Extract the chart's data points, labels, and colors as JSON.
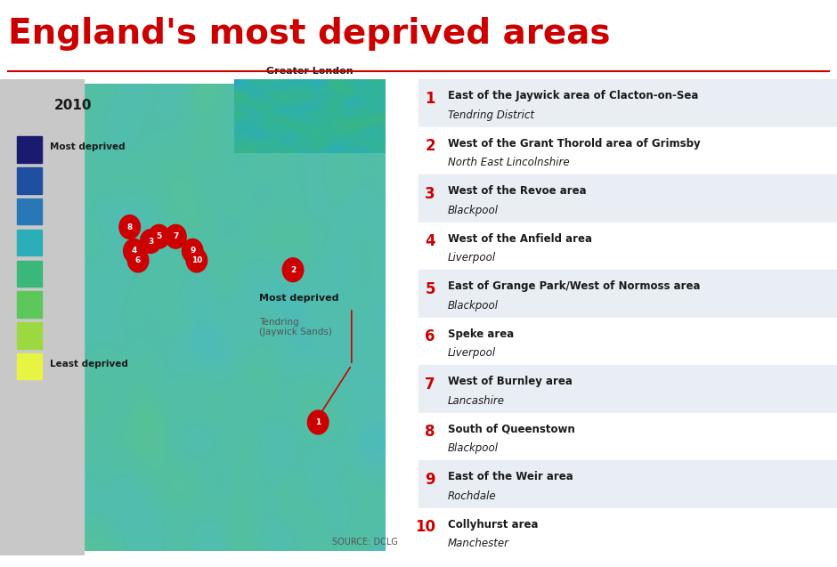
{
  "title": "England's most deprived areas",
  "title_color": "#cc0000",
  "background_color": "#ffffff",
  "year_label": "2010",
  "legend_labels": [
    "Most deprived",
    "",
    "",
    "",
    "",
    "",
    "",
    "Least deprived"
  ],
  "legend_colors": [
    "#1a1a6e",
    "#1f4fa0",
    "#2878b8",
    "#2baeb8",
    "#3ab87a",
    "#5dc85a",
    "#9ed840",
    "#e8f442"
  ],
  "map_annotation_title": "Most deprived",
  "map_annotation_sub": "Tendring\n(Jaywick Sands)",
  "london_label": "Greater London",
  "source_text": "SOURCE: DCLG",
  "right_panel_bg_odd": "#e8eef4",
  "right_panel_bg_even": "#ffffff",
  "items": [
    {
      "rank": 1,
      "name": "East of the Jaywick area of Clacton-on-Sea",
      "location": "Tendring District"
    },
    {
      "rank": 2,
      "name": "West of the Grant Thorold area of Grimsby",
      "location": "North East Lincolnshire"
    },
    {
      "rank": 3,
      "name": "West of the Revoe area",
      "location": "Blackpool"
    },
    {
      "rank": 4,
      "name": "West of the Anfield area",
      "location": "Liverpool"
    },
    {
      "rank": 5,
      "name": "East of Grange Park/West of Normoss area",
      "location": "Blackpool"
    },
    {
      "rank": 6,
      "name": "Speke area",
      "location": "Liverpool"
    },
    {
      "rank": 7,
      "name": "West of Burnley area",
      "location": "Lancashire"
    },
    {
      "rank": 8,
      "name": "South of Queenstown",
      "location": "Blackpool"
    },
    {
      "rank": 9,
      "name": "East of the Weir area",
      "location": "Rochdale"
    },
    {
      "rank": 10,
      "name": "Collyhurst area",
      "location": "Manchester"
    }
  ],
  "divider_color": "#cc0000",
  "rank_color": "#cc0000",
  "name_color": "#1a1a1a",
  "location_color": "#1a1a1a"
}
